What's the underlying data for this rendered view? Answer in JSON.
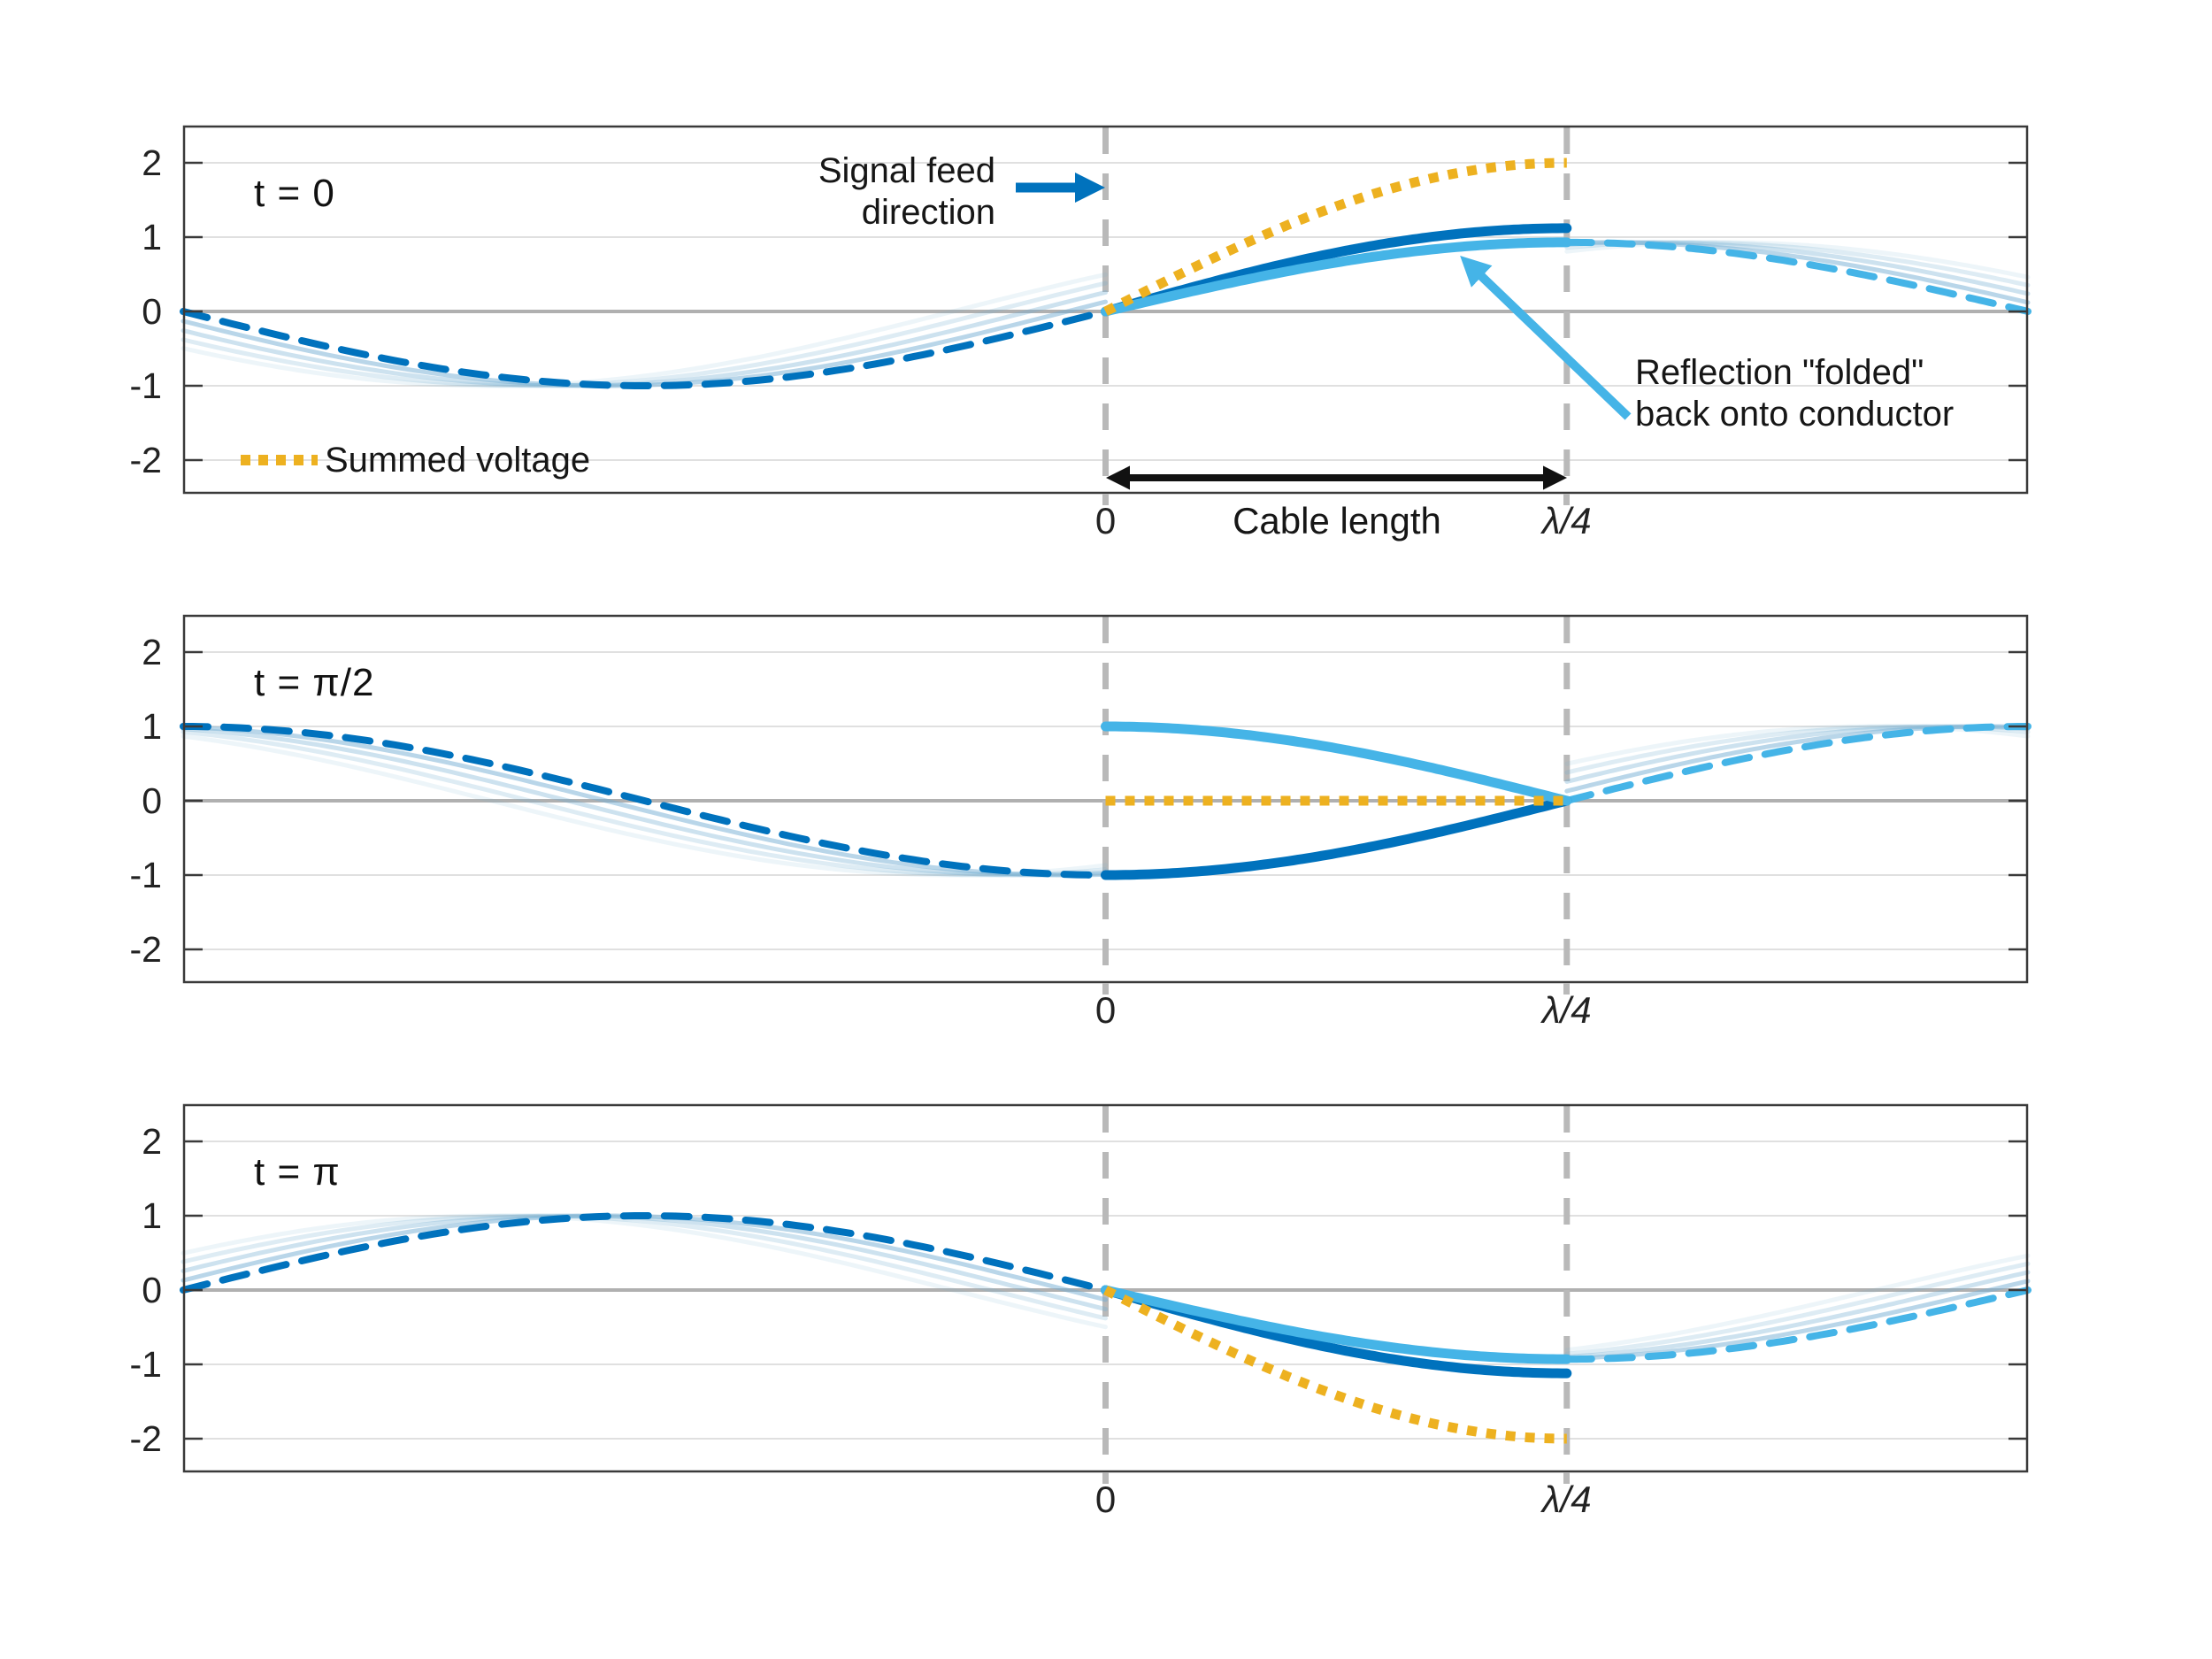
{
  "figure": {
    "background": "#ffffff",
    "description": "Quarter-wave cable reflection standing-wave diagram, three time snapshots"
  },
  "colors": {
    "incident": "#0072BD",
    "reflected": "#45B4E7",
    "summed": "#EDB120",
    "ghost": "#74AED3",
    "grid_line": "#e0e0e0",
    "zero_line": "#b0b0b0",
    "cable_line": "#b9b9b9",
    "border": "#3a3a3a",
    "text": "#161616",
    "arrow_black": "#111111"
  },
  "annotations": {
    "signal_feed_line1": "Signal feed",
    "signal_feed_line2": "direction",
    "reflection_line1": "Reflection \"folded\"",
    "reflection_line2": "back onto conductor",
    "summed_voltage": "Summed voltage",
    "cable_length": "Cable length"
  },
  "chart_data": [
    {
      "type": "line",
      "title": "t = 0",
      "ylim": [
        -2.5,
        2.5
      ],
      "grid": true,
      "u_range": [
        -0.5,
        0.5
      ],
      "cable_u": [
        0,
        0.25
      ],
      "yticks": [
        {
          "label": "2",
          "value": 2
        },
        {
          "label": "1",
          "value": 1
        },
        {
          "label": "0",
          "value": 0
        },
        {
          "label": "-1",
          "value": -1
        },
        {
          "label": "-2",
          "value": -2
        }
      ],
      "xticks": [
        {
          "label": "0",
          "u": 0
        },
        {
          "label": "λ/4",
          "u": 0.25
        }
      ],
      "series": [
        {
          "name": "incident-ghost-left-1",
          "color": "#74AED3",
          "style": "solid",
          "width": 5,
          "amp": 1,
          "phase": 0.13,
          "u0": -0.5,
          "u1": 0,
          "opacity": 0.5
        },
        {
          "name": "incident-ghost-left-2",
          "color": "#74AED3",
          "style": "solid",
          "width": 5,
          "amp": 1,
          "phase": 0.26,
          "u0": -0.5,
          "u1": 0,
          "opacity": 0.36
        },
        {
          "name": "incident-ghost-left-3",
          "color": "#74AED3",
          "style": "solid",
          "width": 5,
          "amp": 1,
          "phase": 0.39,
          "u0": -0.5,
          "u1": 0,
          "opacity": 0.24
        },
        {
          "name": "incident-ghost-left-4",
          "color": "#74AED3",
          "style": "solid",
          "width": 5,
          "amp": 1,
          "phase": 0.52,
          "u0": -0.5,
          "u1": 0,
          "opacity": 0.13
        },
        {
          "name": "incident-wave-outside-cable",
          "color": "#0072BD",
          "style": "dashed",
          "width": 8,
          "amp": 1,
          "phase": 0,
          "u0": -0.5,
          "u1": 0,
          "opacity": 1
        },
        {
          "name": "reflected-ghost-right-1",
          "color": "#74AED3",
          "style": "solid",
          "width": 5,
          "amp": 0.93,
          "phase": -0.13,
          "u0": 0.25,
          "u1": 0.5,
          "opacity": 0.5
        },
        {
          "name": "reflected-ghost-right-2",
          "color": "#74AED3",
          "style": "solid",
          "width": 5,
          "amp": 0.93,
          "phase": -0.26,
          "u0": 0.25,
          "u1": 0.5,
          "opacity": 0.36
        },
        {
          "name": "reflected-ghost-right-3",
          "color": "#74AED3",
          "style": "solid",
          "width": 5,
          "amp": 0.93,
          "phase": -0.39,
          "u0": 0.25,
          "u1": 0.5,
          "opacity": 0.24
        },
        {
          "name": "reflected-ghost-right-4",
          "color": "#74AED3",
          "style": "solid",
          "width": 5,
          "amp": 0.93,
          "phase": -0.52,
          "u0": 0.25,
          "u1": 0.5,
          "opacity": 0.13
        },
        {
          "name": "reflected-wave-virtual-continuation",
          "color": "#45B4E7",
          "style": "dashed",
          "width": 8,
          "amp": 0.93,
          "phase": 0,
          "u0": 0.25,
          "u1": 0.5,
          "opacity": 1
        },
        {
          "name": "incident-wave-in-cable",
          "color": "#0072BD",
          "style": "solid",
          "width": 11,
          "amp": 1.12,
          "phase": 0,
          "u0": 0,
          "u1": 0.25,
          "opacity": 1
        },
        {
          "name": "reflected-wave-folded-in-cable",
          "color": "#45B4E7",
          "style": "solid",
          "width": 11,
          "amp": 0.93,
          "phase": 0,
          "u0": 0,
          "u1": 0.25,
          "opacity": 1
        },
        {
          "name": "summed-voltage",
          "color": "#EDB120",
          "style": "dotted",
          "width": 11,
          "amp": 2,
          "phase": 0,
          "u0": 0,
          "u1": 0.25,
          "opacity": 1
        }
      ]
    },
    {
      "type": "line",
      "title": "t = π/2",
      "ylim": [
        -2.5,
        2.5
      ],
      "grid": true,
      "u_range": [
        -0.5,
        0.5
      ],
      "cable_u": [
        0,
        0.25
      ],
      "yticks": [
        {
          "label": "2",
          "value": 2
        },
        {
          "label": "1",
          "value": 1
        },
        {
          "label": "0",
          "value": 0
        },
        {
          "label": "-1",
          "value": -1
        },
        {
          "label": "-2",
          "value": -2
        }
      ],
      "xticks": [
        {
          "label": "0",
          "u": 0
        },
        {
          "label": "λ/4",
          "u": 0.25
        }
      ],
      "series": [
        {
          "name": "incident-ghost-left-1",
          "color": "#74AED3",
          "style": "solid",
          "width": 5,
          "amp": 1,
          "phase": -1.4408,
          "u0": -0.5,
          "u1": 0,
          "opacity": 0.5
        },
        {
          "name": "incident-ghost-left-2",
          "color": "#74AED3",
          "style": "solid",
          "width": 5,
          "amp": 1,
          "phase": -1.3108,
          "u0": -0.5,
          "u1": 0,
          "opacity": 0.36
        },
        {
          "name": "incident-ghost-left-3",
          "color": "#74AED3",
          "style": "solid",
          "width": 5,
          "amp": 1,
          "phase": -1.1808,
          "u0": -0.5,
          "u1": 0,
          "opacity": 0.24
        },
        {
          "name": "incident-ghost-left-4",
          "color": "#74AED3",
          "style": "solid",
          "width": 5,
          "amp": 1,
          "phase": -1.0508,
          "u0": -0.5,
          "u1": 0,
          "opacity": 0.13
        },
        {
          "name": "incident-wave-outside-cable",
          "color": "#0072BD",
          "style": "dashed",
          "width": 8,
          "amp": 1,
          "phase": -1.5708,
          "u0": -0.5,
          "u1": 0,
          "opacity": 1
        },
        {
          "name": "reflected-ghost-right-1",
          "color": "#74AED3",
          "style": "solid",
          "width": 5,
          "amp": 1,
          "phase": -1.4408,
          "u0": 0.25,
          "u1": 0.5,
          "opacity": 0.5
        },
        {
          "name": "reflected-ghost-right-2",
          "color": "#74AED3",
          "style": "solid",
          "width": 5,
          "amp": 1,
          "phase": -1.3108,
          "u0": 0.25,
          "u1": 0.5,
          "opacity": 0.36
        },
        {
          "name": "reflected-ghost-right-3",
          "color": "#74AED3",
          "style": "solid",
          "width": 5,
          "amp": 1,
          "phase": -1.1808,
          "u0": 0.25,
          "u1": 0.5,
          "opacity": 0.24
        },
        {
          "name": "reflected-ghost-right-4",
          "color": "#74AED3",
          "style": "solid",
          "width": 5,
          "amp": 1,
          "phase": -1.0508,
          "u0": 0.25,
          "u1": 0.5,
          "opacity": 0.13
        },
        {
          "name": "reflected-wave-virtual-continuation",
          "color": "#45B4E7",
          "style": "dashed",
          "width": 8,
          "amp": 1,
          "phase": -1.5708,
          "u0": 0.25,
          "u1": 0.5,
          "opacity": 1
        },
        {
          "name": "incident-wave-in-cable",
          "color": "#0072BD",
          "style": "solid",
          "width": 11,
          "amp": 1,
          "phase": -1.5708,
          "u0": 0,
          "u1": 0.25,
          "opacity": 1
        },
        {
          "name": "reflected-wave-folded-in-cable",
          "color": "#45B4E7",
          "style": "solid",
          "width": 11,
          "amp": 1,
          "phase": 1.5708,
          "u0": 0,
          "u1": 0.25,
          "opacity": 1
        },
        {
          "name": "summed-voltage",
          "color": "#EDB120",
          "style": "dotted",
          "width": 11,
          "amp": 0,
          "phase": 0,
          "u0": 0,
          "u1": 0.25,
          "opacity": 1
        }
      ]
    },
    {
      "type": "line",
      "title": "t = π",
      "ylim": [
        -2.5,
        2.5
      ],
      "grid": true,
      "u_range": [
        -0.5,
        0.5
      ],
      "cable_u": [
        0,
        0.25
      ],
      "yticks": [
        {
          "label": "2",
          "value": 2
        },
        {
          "label": "1",
          "value": 1
        },
        {
          "label": "0",
          "value": 0
        },
        {
          "label": "-1",
          "value": -1
        },
        {
          "label": "-2",
          "value": -2
        }
      ],
      "xticks": [
        {
          "label": "0",
          "u": 0
        },
        {
          "label": "λ/4",
          "u": 0.25
        }
      ],
      "series": [
        {
          "name": "incident-ghost-left-1",
          "color": "#74AED3",
          "style": "solid",
          "width": 5,
          "amp": 1,
          "phase": 3.2716,
          "u0": -0.5,
          "u1": 0,
          "opacity": 0.5
        },
        {
          "name": "incident-ghost-left-2",
          "color": "#74AED3",
          "style": "solid",
          "width": 5,
          "amp": 1,
          "phase": 3.4016,
          "u0": -0.5,
          "u1": 0,
          "opacity": 0.36
        },
        {
          "name": "incident-ghost-left-3",
          "color": "#74AED3",
          "style": "solid",
          "width": 5,
          "amp": 1,
          "phase": 3.5316,
          "u0": -0.5,
          "u1": 0,
          "opacity": 0.24
        },
        {
          "name": "incident-ghost-left-4",
          "color": "#74AED3",
          "style": "solid",
          "width": 5,
          "amp": 1,
          "phase": 3.6616,
          "u0": -0.5,
          "u1": 0,
          "opacity": 0.13
        },
        {
          "name": "incident-wave-outside-cable",
          "color": "#0072BD",
          "style": "dashed",
          "width": 8,
          "amp": 1,
          "phase": 3.1416,
          "u0": -0.5,
          "u1": 0,
          "opacity": 1
        },
        {
          "name": "reflected-ghost-right-1",
          "color": "#74AED3",
          "style": "solid",
          "width": 5,
          "amp": 0.93,
          "phase": 3.2716,
          "u0": 0.25,
          "u1": 0.5,
          "opacity": 0.5
        },
        {
          "name": "reflected-ghost-right-2",
          "color": "#74AED3",
          "style": "solid",
          "width": 5,
          "amp": 0.93,
          "phase": 3.4016,
          "u0": 0.25,
          "u1": 0.5,
          "opacity": 0.36
        },
        {
          "name": "reflected-ghost-right-3",
          "color": "#74AED3",
          "style": "solid",
          "width": 5,
          "amp": 0.93,
          "phase": 3.5316,
          "u0": 0.25,
          "u1": 0.5,
          "opacity": 0.24
        },
        {
          "name": "reflected-ghost-right-4",
          "color": "#74AED3",
          "style": "solid",
          "width": 5,
          "amp": 0.93,
          "phase": 3.6616,
          "u0": 0.25,
          "u1": 0.5,
          "opacity": 0.13
        },
        {
          "name": "reflected-wave-virtual-continuation",
          "color": "#45B4E7",
          "style": "dashed",
          "width": 8,
          "amp": 0.93,
          "phase": 3.1416,
          "u0": 0.25,
          "u1": 0.5,
          "opacity": 1
        },
        {
          "name": "incident-wave-in-cable",
          "color": "#0072BD",
          "style": "solid",
          "width": 11,
          "amp": 1.12,
          "phase": 3.1416,
          "u0": 0,
          "u1": 0.25,
          "opacity": 1
        },
        {
          "name": "reflected-wave-folded-in-cable",
          "color": "#45B4E7",
          "style": "solid",
          "width": 11,
          "amp": 0.93,
          "phase": 3.1416,
          "u0": 0,
          "u1": 0.25,
          "opacity": 1
        },
        {
          "name": "summed-voltage",
          "color": "#EDB120",
          "style": "dotted",
          "width": 11,
          "amp": 2,
          "phase": 3.1416,
          "u0": 0,
          "u1": 0.25,
          "opacity": 1
        }
      ]
    }
  ]
}
